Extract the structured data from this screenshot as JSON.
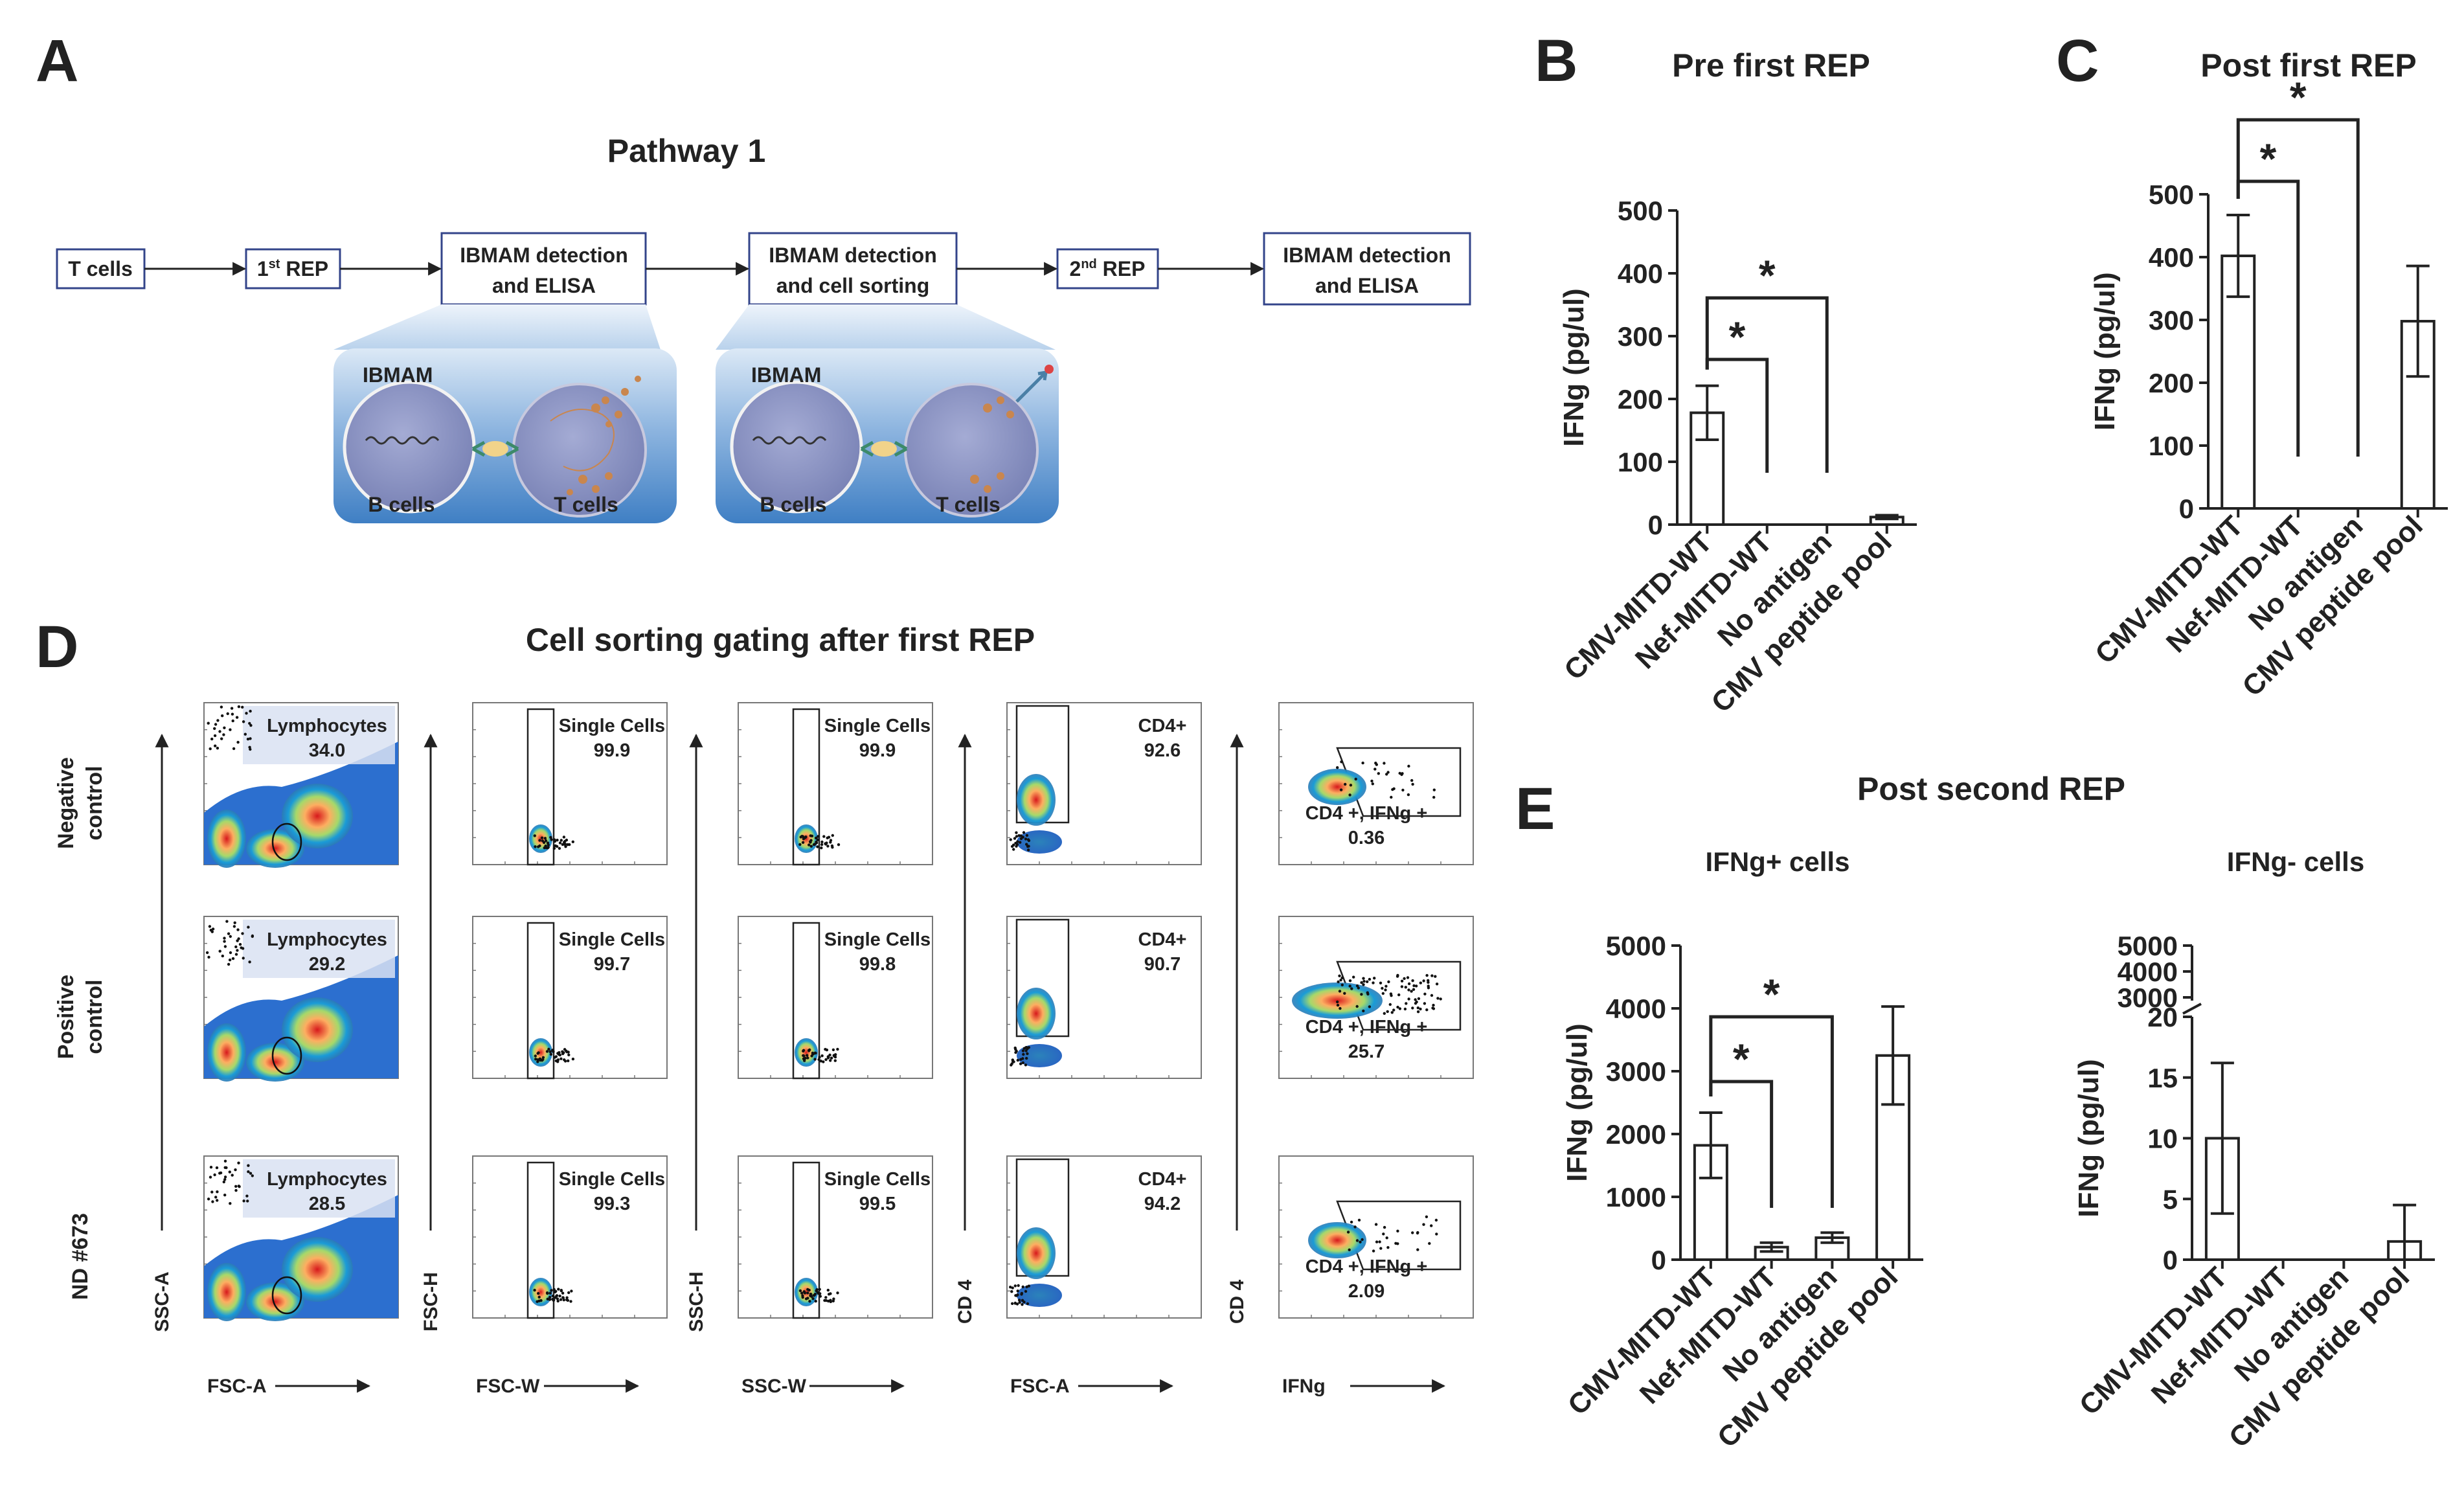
{
  "panel_letters": {
    "a": "A",
    "b": "B",
    "c": "C",
    "d": "D",
    "e": "E"
  },
  "panel_a": {
    "title": "Pathway 1",
    "flow": [
      {
        "lines": [
          "T cells"
        ]
      },
      {
        "lines": [
          "1",
          "st",
          " REP"
        ]
      },
      {
        "lines": [
          "IBMAM detection",
          "and ELISA"
        ]
      },
      {
        "lines": [
          "IBMAM detection",
          "and cell sorting"
        ]
      },
      {
        "lines": [
          "2",
          "nd",
          "  REP"
        ]
      },
      {
        "lines": [
          "IBMAM detection",
          "and ELISA"
        ]
      }
    ],
    "insets": [
      {
        "label": "IBMAM",
        "left": "B cells",
        "right": "T cells"
      },
      {
        "label": "IBMAM",
        "left": "B cells",
        "right": "T cells"
      }
    ],
    "colors": {
      "inset_bg": "#3f7fc4",
      "inset_light": "#dce9f6",
      "cell": "#8c95c4",
      "box_border": "#33448a"
    }
  },
  "panel_d": {
    "title": "Cell sorting gating after first REP",
    "row_labels": [
      [
        "Negative",
        "control"
      ],
      [
        "Positive",
        "control"
      ],
      [
        "ND #673"
      ]
    ],
    "y_axes": [
      "SSC-A",
      "FSC-H",
      "SSC-H",
      "CD 4",
      "CD 4"
    ],
    "x_axes": [
      "FSC-A",
      "FSC-W",
      "SSC-W",
      "FSC-A",
      "IFNg"
    ],
    "gates": [
      [
        {
          "name": "Lymphocytes",
          "value": "34.0"
        },
        {
          "name": "Single Cells",
          "value": "99.9"
        },
        {
          "name": "Single Cells",
          "value": "99.9"
        },
        {
          "name": "CD4+",
          "value": "92.6"
        },
        {
          "name": "CD4 +, IFNg +",
          "value": "0.36"
        }
      ],
      [
        {
          "name": "Lymphocytes",
          "value": "29.2"
        },
        {
          "name": "Single Cells",
          "value": "99.7"
        },
        {
          "name": "Single Cells",
          "value": "99.8"
        },
        {
          "name": "CD4+",
          "value": "90.7"
        },
        {
          "name": "CD4 +, IFNg +",
          "value": "25.7"
        }
      ],
      [
        {
          "name": "Lymphocytes",
          "value": "28.5"
        },
        {
          "name": "Single Cells",
          "value": "99.3"
        },
        {
          "name": "Single Cells",
          "value": "99.5"
        },
        {
          "name": "CD4+",
          "value": "94.2"
        },
        {
          "name": "CD4 +, IFNg +",
          "value": "2.09"
        }
      ]
    ]
  },
  "panel_e": {
    "title": "Post second REP"
  },
  "chart_data": [
    {
      "id": "B",
      "type": "bar",
      "title": "Pre first REP",
      "categories": [
        "CMV-MITD-WT",
        "Nef-MITD-WT",
        "No antigen",
        "CMV peptide pool"
      ],
      "values": [
        178,
        0,
        0,
        12
      ],
      "errors": [
        43,
        0,
        0,
        3
      ],
      "ylabel": "IFNg (pg/ul)",
      "ylim": [
        0,
        500
      ],
      "yticks": [
        0,
        100,
        200,
        300,
        400,
        500
      ],
      "significance": [
        {
          "from": 0,
          "to": 1,
          "label": "*"
        },
        {
          "from": 0,
          "to": 2,
          "label": "*"
        }
      ]
    },
    {
      "id": "C",
      "type": "bar",
      "title": "Post first REP",
      "categories": [
        "CMV-MITD-WT",
        "Nef-MITD-WT",
        "No antigen",
        "CMV peptide pool"
      ],
      "values": [
        402,
        0,
        0,
        298
      ],
      "errors": [
        65,
        0,
        0,
        88
      ],
      "ylabel": "IFNg (pg/ul)",
      "ylim": [
        0,
        500
      ],
      "yticks": [
        0,
        100,
        200,
        300,
        400,
        500
      ],
      "significance": [
        {
          "from": 0,
          "to": 1,
          "label": "*"
        },
        {
          "from": 0,
          "to": 2,
          "label": "*"
        }
      ]
    },
    {
      "id": "E1",
      "type": "bar",
      "title": "IFNg+ cells",
      "categories": [
        "CMV-MITD-WT",
        "Nef-MITD-WT",
        "No antigen",
        "CMV peptide pool"
      ],
      "values": [
        1820,
        200,
        350,
        3250
      ],
      "errors": [
        520,
        70,
        80,
        780
      ],
      "ylabel": "IFNg (pg/ul)",
      "ylim": [
        0,
        5000
      ],
      "yticks": [
        0,
        1000,
        2000,
        3000,
        4000,
        5000
      ],
      "significance": [
        {
          "from": 0,
          "to": 1,
          "label": "*"
        },
        {
          "from": 0,
          "to": 2,
          "label": "*"
        }
      ]
    },
    {
      "id": "E2",
      "type": "bar",
      "title": "IFNg- cells",
      "categories": [
        "CMV-MITD-WT",
        "Nef-MITD-WT",
        "No antigen",
        "CMV peptide pool"
      ],
      "values": [
        10,
        0,
        0,
        1.5
      ],
      "errors": [
        6.2,
        0,
        0,
        3
      ],
      "ylabel": "IFNg (pg/ul)",
      "ylim": [
        0,
        20
      ],
      "yticks": [
        0,
        5,
        10,
        15,
        20
      ],
      "broken_axis_upper_ticks": [
        3000,
        4000,
        5000
      ],
      "significance": []
    }
  ]
}
